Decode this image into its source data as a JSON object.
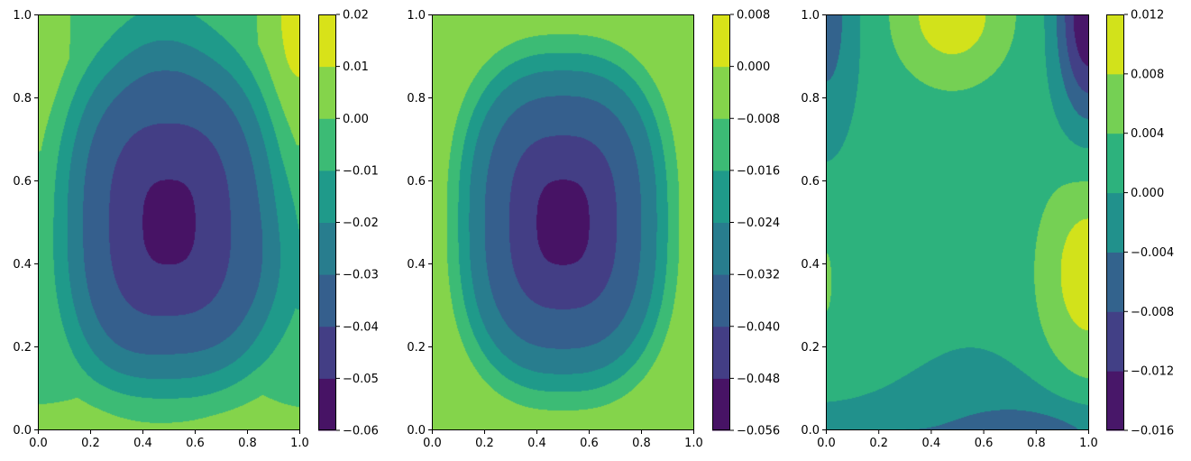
{
  "chart_data": [
    {
      "type": "contourf",
      "colormap": "viridis",
      "xlim": [
        0,
        1
      ],
      "ylim": [
        0,
        1
      ],
      "xticks": [
        "0.0",
        "0.2",
        "0.4",
        "0.6",
        "0.8",
        "1.0"
      ],
      "yticks": [
        "0.0",
        "0.2",
        "0.4",
        "0.6",
        "0.8",
        "1.0"
      ],
      "levels": [
        -0.06,
        -0.05,
        -0.04,
        -0.03,
        -0.02,
        -0.01,
        0.0,
        0.01,
        0.02
      ],
      "colorbar_ticks": [
        "−0.06",
        "−0.05",
        "−0.04",
        "−0.03",
        "−0.02",
        "−0.01",
        "0.00",
        "0.01",
        "0.02"
      ],
      "colors": [
        "#471365",
        "#433e85",
        "#355f8d",
        "#287d8e",
        "#1f9a8a",
        "#3cbb75",
        "#84d44b",
        "#d8e219"
      ]
    },
    {
      "type": "contourf",
      "colormap": "viridis",
      "xlim": [
        0,
        1
      ],
      "ylim": [
        0,
        1
      ],
      "xticks": [
        "0.0",
        "0.2",
        "0.4",
        "0.6",
        "0.8",
        "1.0"
      ],
      "yticks": [
        "0.0",
        "0.2",
        "0.4",
        "0.6",
        "0.8",
        "1.0"
      ],
      "levels": [
        -0.056,
        -0.048,
        -0.04,
        -0.032,
        -0.024,
        -0.016,
        -0.008,
        0.0,
        0.008
      ],
      "colorbar_ticks": [
        "−0.056",
        "−0.048",
        "−0.040",
        "−0.032",
        "−0.024",
        "−0.016",
        "−0.008",
        "0.000",
        "0.008"
      ],
      "colors": [
        "#471365",
        "#433e85",
        "#355f8d",
        "#287d8e",
        "#1f9a8a",
        "#3cbb75",
        "#84d44b",
        "#d8e219"
      ]
    },
    {
      "type": "contourf",
      "colormap": "viridis",
      "xlim": [
        0,
        1
      ],
      "ylim": [
        0,
        1
      ],
      "xticks": [
        "0.0",
        "0.2",
        "0.4",
        "0.6",
        "0.8",
        "1.0"
      ],
      "yticks": [
        "0.0",
        "0.2",
        "0.4",
        "0.6",
        "0.8",
        "1.0"
      ],
      "levels": [
        -0.016,
        -0.012,
        -0.008,
        -0.004,
        0.0,
        0.004,
        0.008,
        0.012
      ],
      "colorbar_ticks": [
        "−0.016",
        "−0.012",
        "−0.008",
        "−0.004",
        "0.000",
        "0.004",
        "0.008",
        "0.012"
      ],
      "colors": [
        "#481769",
        "#424086",
        "#33638d",
        "#21918c",
        "#2db27d",
        "#75d054",
        "#d2e21b"
      ]
    }
  ]
}
